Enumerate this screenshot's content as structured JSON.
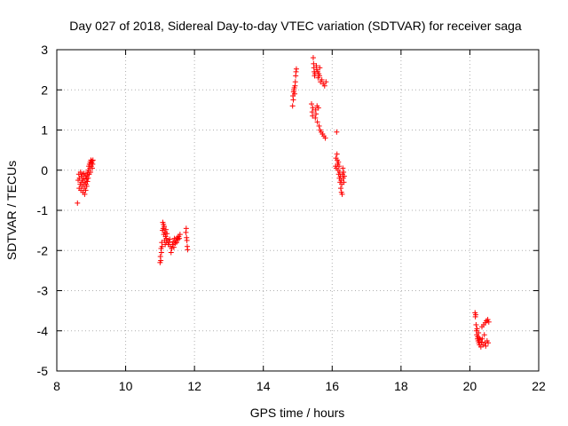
{
  "chart_data": {
    "type": "scatter",
    "title": "Day 027 of 2018, Sidereal Day-to-day VTEC variation (SDTVAR) for receiver saga",
    "xlabel": "GPS time / hours",
    "ylabel": "SDTVAR / TECUs",
    "xlim": [
      8,
      22
    ],
    "ylim": [
      -5,
      3
    ],
    "xticks": [
      "8",
      "10",
      "12",
      "14",
      "16",
      "18",
      "20",
      "22"
    ],
    "yticks": [
      "3",
      "2",
      "1",
      "0",
      "-1",
      "-2",
      "-3",
      "-4",
      "-5"
    ],
    "grid": true,
    "marker": "+",
    "color": "#ff0000",
    "series": [
      {
        "name": "SDTVAR",
        "points": [
          [
            8.6,
            -0.82
          ],
          [
            8.62,
            -0.25
          ],
          [
            8.64,
            -0.1
          ],
          [
            8.65,
            -0.45
          ],
          [
            8.66,
            -0.2
          ],
          [
            8.68,
            -0.35
          ],
          [
            8.69,
            -0.05
          ],
          [
            8.7,
            -0.5
          ],
          [
            8.71,
            -0.15
          ],
          [
            8.72,
            -0.3
          ],
          [
            8.73,
            -0.4
          ],
          [
            8.74,
            -0.1
          ],
          [
            8.75,
            -0.25
          ],
          [
            8.76,
            -0.55
          ],
          [
            8.77,
            -0.2
          ],
          [
            8.78,
            -0.35
          ],
          [
            8.79,
            -0.08
          ],
          [
            8.8,
            -0.45
          ],
          [
            8.81,
            -0.6
          ],
          [
            8.82,
            -0.3
          ],
          [
            8.83,
            -0.15
          ],
          [
            8.84,
            -0.5
          ],
          [
            8.85,
            -0.35
          ],
          [
            8.86,
            -0.22
          ],
          [
            8.87,
            -0.4
          ],
          [
            8.88,
            -0.12
          ],
          [
            8.89,
            -0.28
          ],
          [
            8.9,
            -0.05
          ],
          [
            8.91,
            -0.2
          ],
          [
            8.92,
            0.0
          ],
          [
            8.93,
            0.1
          ],
          [
            8.94,
            -0.1
          ],
          [
            8.95,
            0.15
          ],
          [
            8.96,
            0.05
          ],
          [
            8.97,
            0.2
          ],
          [
            8.98,
            -0.05
          ],
          [
            8.99,
            0.25
          ],
          [
            9.0,
            0.1
          ],
          [
            9.01,
            0.18
          ],
          [
            9.02,
            0.22
          ],
          [
            9.03,
            0.05
          ],
          [
            9.04,
            0.15
          ],
          [
            9.05,
            0.25
          ],
          [
            11.0,
            -2.3
          ],
          [
            11.01,
            -2.15
          ],
          [
            11.02,
            -2.25
          ],
          [
            11.03,
            -1.95
          ],
          [
            11.04,
            -2.05
          ],
          [
            11.05,
            -1.8
          ],
          [
            11.06,
            -1.9
          ],
          [
            11.07,
            -1.5
          ],
          [
            11.08,
            -1.3
          ],
          [
            11.09,
            -1.45
          ],
          [
            11.1,
            -1.35
          ],
          [
            11.11,
            -1.6
          ],
          [
            11.12,
            -1.4
          ],
          [
            11.13,
            -1.75
          ],
          [
            11.14,
            -1.55
          ],
          [
            11.15,
            -1.85
          ],
          [
            11.16,
            -1.65
          ],
          [
            11.17,
            -1.48
          ],
          [
            11.18,
            -1.7
          ],
          [
            11.19,
            -1.8
          ],
          [
            11.2,
            -1.58
          ],
          [
            11.22,
            -1.75
          ],
          [
            11.24,
            -1.85
          ],
          [
            11.26,
            -1.8
          ],
          [
            11.28,
            -1.72
          ],
          [
            11.3,
            -1.9
          ],
          [
            11.32,
            -2.05
          ],
          [
            11.34,
            -1.95
          ],
          [
            11.36,
            -1.85
          ],
          [
            11.38,
            -1.78
          ],
          [
            11.4,
            -1.92
          ],
          [
            11.42,
            -1.7
          ],
          [
            11.44,
            -1.82
          ],
          [
            11.46,
            -1.75
          ],
          [
            11.48,
            -1.8
          ],
          [
            11.5,
            -1.68
          ],
          [
            11.52,
            -1.72
          ],
          [
            11.54,
            -1.65
          ],
          [
            11.56,
            -1.7
          ],
          [
            11.58,
            -1.6
          ],
          [
            11.75,
            -1.55
          ],
          [
            11.76,
            -1.45
          ],
          [
            11.77,
            -1.68
          ],
          [
            11.78,
            -1.75
          ],
          [
            11.79,
            -1.9
          ],
          [
            11.8,
            -1.98
          ],
          [
            14.85,
            1.6
          ],
          [
            14.86,
            1.85
          ],
          [
            14.87,
            1.75
          ],
          [
            14.88,
            1.95
          ],
          [
            14.89,
            2.0
          ],
          [
            14.9,
            2.05
          ],
          [
            14.91,
            1.9
          ],
          [
            14.92,
            2.1
          ],
          [
            14.93,
            2.2
          ],
          [
            14.94,
            2.35
          ],
          [
            14.95,
            2.45
          ],
          [
            14.96,
            2.52
          ],
          [
            15.4,
            1.65
          ],
          [
            15.42,
            1.45
          ],
          [
            15.43,
            1.35
          ],
          [
            15.44,
            1.55
          ],
          [
            15.45,
            2.8
          ],
          [
            15.46,
            2.65
          ],
          [
            15.47,
            2.55
          ],
          [
            15.48,
            2.45
          ],
          [
            15.49,
            2.35
          ],
          [
            15.5,
            2.4
          ],
          [
            15.51,
            1.3
          ],
          [
            15.52,
            1.5
          ],
          [
            15.53,
            1.4
          ],
          [
            15.54,
            2.6
          ],
          [
            15.55,
            2.5
          ],
          [
            15.56,
            1.6
          ],
          [
            15.57,
            1.2
          ],
          [
            15.58,
            2.45
          ],
          [
            15.59,
            2.3
          ],
          [
            15.6,
            1.55
          ],
          [
            15.61,
            2.4
          ],
          [
            15.62,
            1.1
          ],
          [
            15.63,
            2.35
          ],
          [
            15.64,
            2.55
          ],
          [
            15.65,
            1.0
          ],
          [
            15.66,
            2.2
          ],
          [
            15.68,
            0.95
          ],
          [
            15.7,
            2.25
          ],
          [
            15.72,
            0.9
          ],
          [
            15.74,
            2.15
          ],
          [
            15.76,
            0.85
          ],
          [
            15.78,
            2.1
          ],
          [
            15.8,
            0.8
          ],
          [
            15.82,
            2.2
          ],
          [
            16.1,
            0.1
          ],
          [
            16.11,
            0.3
          ],
          [
            16.12,
            0.05
          ],
          [
            16.13,
            0.95
          ],
          [
            16.14,
            0.4
          ],
          [
            16.15,
            0.25
          ],
          [
            16.16,
            0.15
          ],
          [
            16.17,
            0.0
          ],
          [
            16.18,
            0.2
          ],
          [
            16.19,
            -0.1
          ],
          [
            16.2,
            0.1
          ],
          [
            16.21,
            -0.2
          ],
          [
            16.22,
            -0.05
          ],
          [
            16.23,
            -0.3
          ],
          [
            16.24,
            -0.15
          ],
          [
            16.25,
            -0.45
          ],
          [
            16.26,
            -0.25
          ],
          [
            16.27,
            -0.55
          ],
          [
            16.28,
            -0.35
          ],
          [
            16.29,
            -0.6
          ],
          [
            16.3,
            -0.1
          ],
          [
            16.31,
            0.05
          ],
          [
            16.32,
            -0.2
          ],
          [
            16.33,
            -0.05
          ],
          [
            16.34,
            -0.3
          ],
          [
            16.35,
            -0.15
          ],
          [
            20.15,
            -3.55
          ],
          [
            20.16,
            -3.65
          ],
          [
            20.17,
            -3.6
          ],
          [
            20.18,
            -3.85
          ],
          [
            20.19,
            -4.0
          ],
          [
            20.2,
            -4.1
          ],
          [
            20.21,
            -3.95
          ],
          [
            20.22,
            -4.2
          ],
          [
            20.23,
            -4.15
          ],
          [
            20.24,
            -4.25
          ],
          [
            20.25,
            -4.05
          ],
          [
            20.26,
            -4.3
          ],
          [
            20.27,
            -4.18
          ],
          [
            20.28,
            -4.35
          ],
          [
            20.3,
            -4.22
          ],
          [
            20.32,
            -4.4
          ],
          [
            20.34,
            -4.28
          ],
          [
            20.35,
            -3.9
          ],
          [
            20.36,
            -4.2
          ],
          [
            20.38,
            -4.35
          ],
          [
            20.4,
            -3.85
          ],
          [
            20.42,
            -4.1
          ],
          [
            20.44,
            -4.3
          ],
          [
            20.45,
            -3.8
          ],
          [
            20.46,
            -4.38
          ],
          [
            20.48,
            -3.75
          ],
          [
            20.5,
            -4.25
          ],
          [
            20.52,
            -3.72
          ],
          [
            20.53,
            -4.3
          ],
          [
            20.55,
            -3.78
          ]
        ]
      }
    ]
  }
}
